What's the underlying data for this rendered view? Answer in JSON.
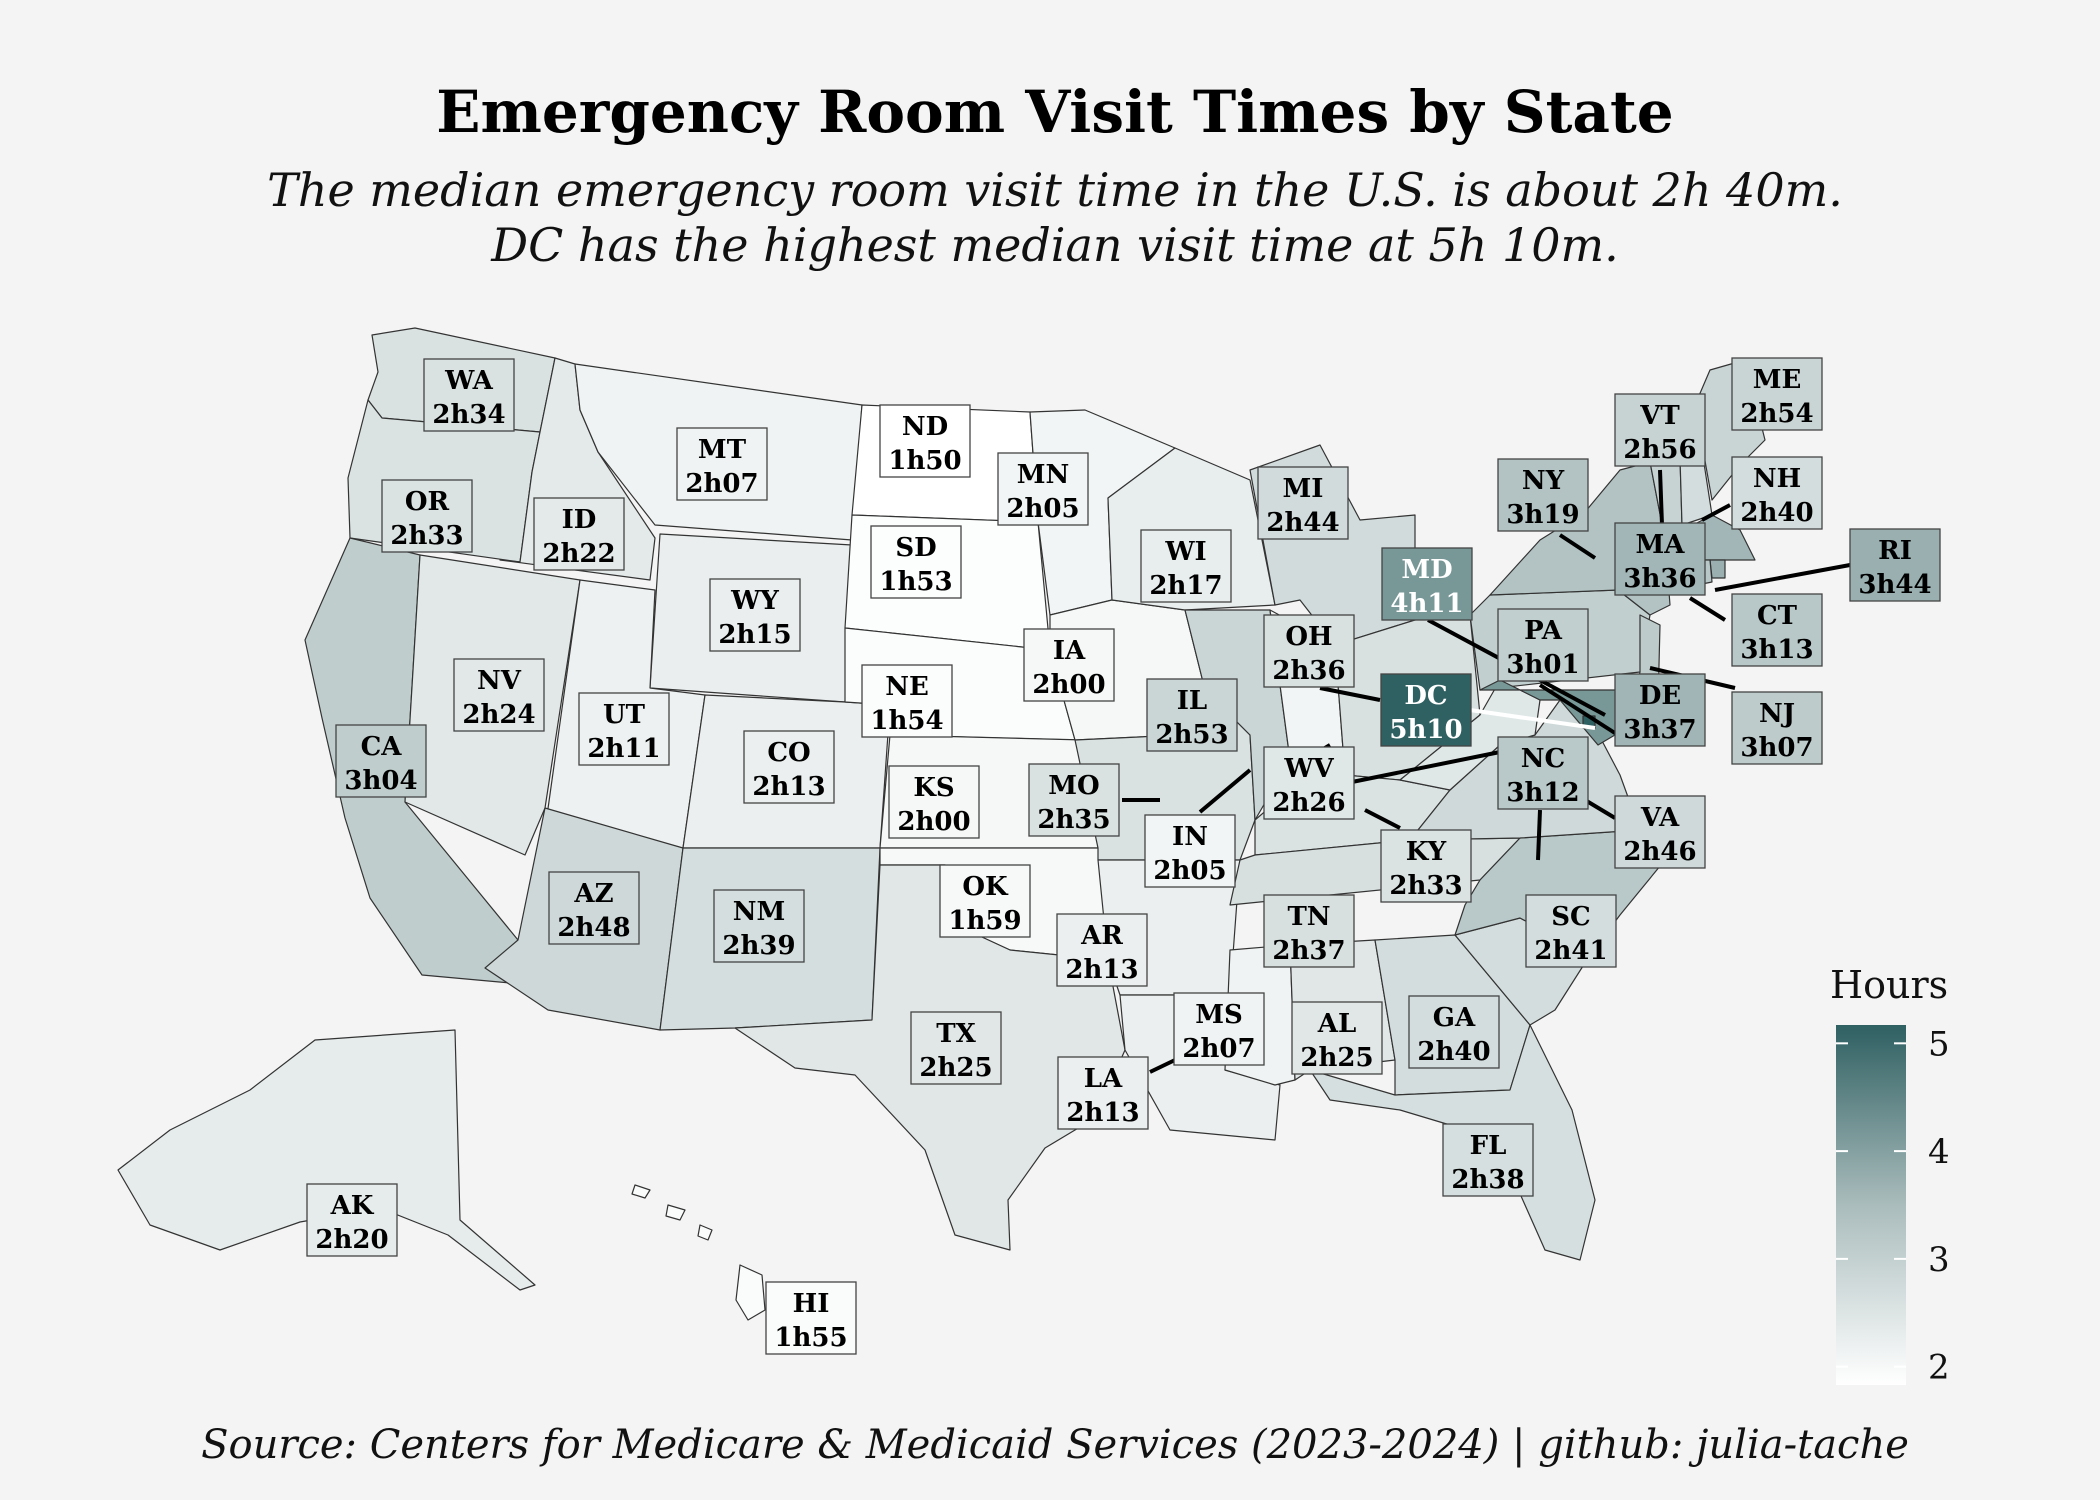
{
  "title": "Emergency Room Visit Times by State",
  "subtitle_lines": [
    "The median emergency room visit time in the U.S. is about 2h 40m.",
    "DC has the highest median visit time at 5h 10m."
  ],
  "caption": "Source: Centers for Medicare & Medicaid Services (2023-2024) | github: julia-tache",
  "colors": {
    "low": "#ffffff",
    "high": "#2f6062",
    "background": "#f4f4f4",
    "border": "#333333"
  },
  "legend": {
    "title": "Hours",
    "min": 1.83,
    "max": 5.17,
    "ticks": [
      "2",
      "3",
      "4",
      "5"
    ],
    "tick_values": [
      2,
      3,
      4,
      5
    ]
  },
  "chart_data": {
    "type": "choropleth",
    "states": [
      {
        "abbr": "WA",
        "time": "2h34",
        "hours": 2.57
      },
      {
        "abbr": "OR",
        "time": "2h33",
        "hours": 2.55
      },
      {
        "abbr": "CA",
        "time": "3h04",
        "hours": 3.07
      },
      {
        "abbr": "ID",
        "time": "2h22",
        "hours": 2.37
      },
      {
        "abbr": "NV",
        "time": "2h24",
        "hours": 2.4
      },
      {
        "abbr": "MT",
        "time": "2h07",
        "hours": 2.12
      },
      {
        "abbr": "WY",
        "time": "2h15",
        "hours": 2.25
      },
      {
        "abbr": "UT",
        "time": "2h11",
        "hours": 2.18
      },
      {
        "abbr": "AZ",
        "time": "2h48",
        "hours": 2.8
      },
      {
        "abbr": "CO",
        "time": "2h13",
        "hours": 2.22
      },
      {
        "abbr": "NM",
        "time": "2h39",
        "hours": 2.65
      },
      {
        "abbr": "ND",
        "time": "1h50",
        "hours": 1.83
      },
      {
        "abbr": "SD",
        "time": "1h53",
        "hours": 1.88
      },
      {
        "abbr": "NE",
        "time": "1h54",
        "hours": 1.9
      },
      {
        "abbr": "KS",
        "time": "2h00",
        "hours": 2.0
      },
      {
        "abbr": "OK",
        "time": "1h59",
        "hours": 1.98
      },
      {
        "abbr": "TX",
        "time": "2h25",
        "hours": 2.42
      },
      {
        "abbr": "MN",
        "time": "2h05",
        "hours": 2.08
      },
      {
        "abbr": "IA",
        "time": "2h00",
        "hours": 2.0
      },
      {
        "abbr": "MO",
        "time": "2h35",
        "hours": 2.58
      },
      {
        "abbr": "AR",
        "time": "2h13",
        "hours": 2.22
      },
      {
        "abbr": "LA",
        "time": "2h13",
        "hours": 2.22
      },
      {
        "abbr": "WI",
        "time": "2h17",
        "hours": 2.28
      },
      {
        "abbr": "IL",
        "time": "2h53",
        "hours": 2.88
      },
      {
        "abbr": "MS",
        "time": "2h07",
        "hours": 2.12
      },
      {
        "abbr": "MI",
        "time": "2h44",
        "hours": 2.73
      },
      {
        "abbr": "IN",
        "time": "2h05",
        "hours": 2.08
      },
      {
        "abbr": "OH",
        "time": "2h36",
        "hours": 2.6
      },
      {
        "abbr": "KY",
        "time": "2h33",
        "hours": 2.55
      },
      {
        "abbr": "TN",
        "time": "2h37",
        "hours": 2.62
      },
      {
        "abbr": "AL",
        "time": "2h25",
        "hours": 2.42
      },
      {
        "abbr": "GA",
        "time": "2h40",
        "hours": 2.67
      },
      {
        "abbr": "FL",
        "time": "2h38",
        "hours": 2.63
      },
      {
        "abbr": "SC",
        "time": "2h41",
        "hours": 2.68
      },
      {
        "abbr": "NC",
        "time": "3h12",
        "hours": 3.2
      },
      {
        "abbr": "VA",
        "time": "2h46",
        "hours": 2.77
      },
      {
        "abbr": "WV",
        "time": "2h26",
        "hours": 2.43
      },
      {
        "abbr": "PA",
        "time": "3h01",
        "hours": 3.02
      },
      {
        "abbr": "NY",
        "time": "3h19",
        "hours": 3.32
      },
      {
        "abbr": "VT",
        "time": "2h56",
        "hours": 2.93
      },
      {
        "abbr": "NH",
        "time": "2h40",
        "hours": 2.67
      },
      {
        "abbr": "ME",
        "time": "2h54",
        "hours": 2.9
      },
      {
        "abbr": "MA",
        "time": "3h36",
        "hours": 3.6
      },
      {
        "abbr": "RI",
        "time": "3h44",
        "hours": 3.73
      },
      {
        "abbr": "CT",
        "time": "3h13",
        "hours": 3.22
      },
      {
        "abbr": "NJ",
        "time": "3h07",
        "hours": 3.12
      },
      {
        "abbr": "DE",
        "time": "3h37",
        "hours": 3.62
      },
      {
        "abbr": "MD",
        "time": "4h11",
        "hours": 4.18
      },
      {
        "abbr": "DC",
        "time": "5h10",
        "hours": 5.17
      },
      {
        "abbr": "AK",
        "time": "2h20",
        "hours": 2.33
      },
      {
        "abbr": "HI",
        "time": "1h55",
        "hours": 1.92
      }
    ]
  }
}
